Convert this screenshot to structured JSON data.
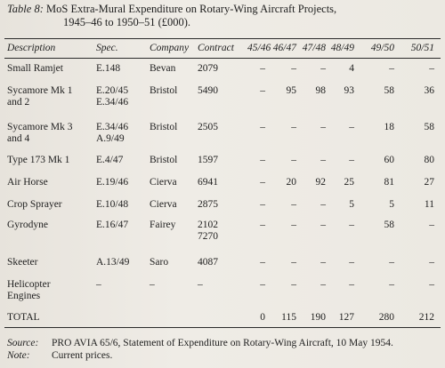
{
  "title": {
    "lead": "Table 8:",
    "line1": "MoS Extra-Mural Expenditure on Rotary-Wing Aircraft Projects,",
    "line2": "1945–46 to 1950–51 (£000)."
  },
  "columns": {
    "description": "Description",
    "spec": "Spec.",
    "company": "Company",
    "contract": "Contract",
    "years": [
      "45/46",
      "46/47",
      "47/48",
      "48/49",
      "49/50",
      "50/51"
    ]
  },
  "rows": [
    {
      "description": [
        "Small Ramjet"
      ],
      "spec": [
        "E.148"
      ],
      "company": "Bevan",
      "contract": [
        "2079"
      ],
      "values": [
        "–",
        "–",
        "–",
        "4",
        "–",
        "–"
      ]
    },
    {
      "description": [
        "Sycamore Mk 1",
        "and 2"
      ],
      "spec": [
        "E.20/45",
        "E.34/46"
      ],
      "company": "Bristol",
      "contract": [
        "5490"
      ],
      "values": [
        "–",
        "95",
        "98",
        "93",
        "58",
        "36"
      ]
    },
    {
      "description": [
        "Sycamore Mk 3",
        "and 4"
      ],
      "spec": [
        "E.34/46",
        "A.9/49"
      ],
      "company": "Bristol",
      "contract": [
        "2505"
      ],
      "values": [
        "–",
        "–",
        "–",
        "–",
        "18",
        "58"
      ]
    },
    {
      "description": [
        "Type 173 Mk 1"
      ],
      "spec": [
        "E.4/47"
      ],
      "company": "Bristol",
      "contract": [
        "1597"
      ],
      "values": [
        "–",
        "–",
        "–",
        "–",
        "60",
        "80"
      ]
    },
    {
      "description": [
        "Air Horse"
      ],
      "spec": [
        "E.19/46"
      ],
      "company": "Cierva",
      "contract": [
        "6941"
      ],
      "values": [
        "–",
        "20",
        "92",
        "25",
        "81",
        "27"
      ]
    },
    {
      "description": [
        "Crop Sprayer"
      ],
      "spec": [
        "E.10/48"
      ],
      "company": "Cierva",
      "contract": [
        "2875"
      ],
      "values": [
        "–",
        "–",
        "–",
        "5",
        "5",
        "11"
      ]
    },
    {
      "description": [
        "Gyrodyne"
      ],
      "spec": [
        "E.16/47"
      ],
      "company": "Fairey",
      "contract": [
        "2102",
        "7270"
      ],
      "values": [
        "–",
        "–",
        "–",
        "–",
        "58",
        "–"
      ]
    },
    {
      "description": [
        "Skeeter"
      ],
      "spec": [
        "A.13/49"
      ],
      "company": "Saro",
      "contract": [
        "4087"
      ],
      "values": [
        "–",
        "–",
        "–",
        "–",
        "–",
        "–"
      ]
    },
    {
      "description": [
        "Helicopter",
        "Engines"
      ],
      "spec": [
        "–"
      ],
      "company": "–",
      "contract": [
        "–"
      ],
      "values": [
        "–",
        "–",
        "–",
        "–",
        "–",
        "–"
      ]
    }
  ],
  "total": {
    "label": "TOTAL",
    "values": [
      "0",
      "115",
      "190",
      "127",
      "280",
      "212"
    ]
  },
  "footer": {
    "source_label": "Source:",
    "source_text": "PRO AVIA 65/6, Statement of Expenditure on Rotary-Wing Aircraft, 10 May 1954.",
    "note_label": "Note:",
    "note_text": "Current prices."
  }
}
